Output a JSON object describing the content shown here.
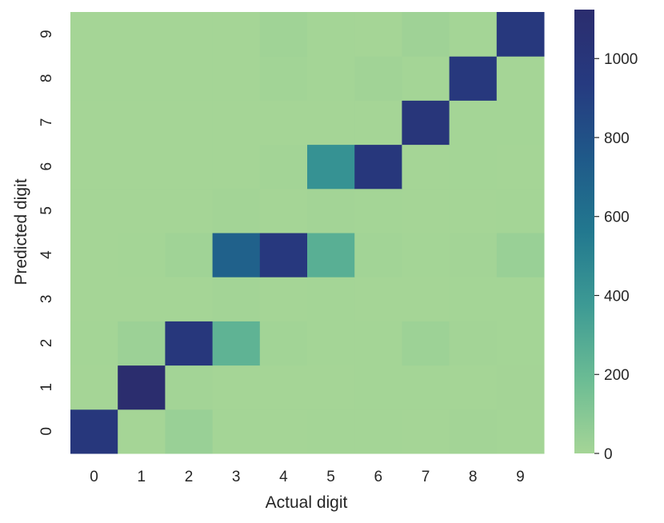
{
  "chart_data": {
    "type": "heatmap",
    "title": "",
    "xlabel": "Actual digit",
    "ylabel": "Predicted digit",
    "x_categories": [
      "0",
      "1",
      "2",
      "3",
      "4",
      "5",
      "6",
      "7",
      "8",
      "9"
    ],
    "y_categories": [
      "0",
      "1",
      "2",
      "3",
      "4",
      "5",
      "6",
      "7",
      "8",
      "9"
    ],
    "y_order": "bottom-to-top",
    "values_note": "rows indexed by predicted digit 0..9, columns by actual digit 0..9",
    "values": [
      [
        975,
        0,
        40,
        3,
        0,
        2,
        3,
        1,
        6,
        3
      ],
      [
        0,
        1124,
        5,
        0,
        1,
        0,
        3,
        3,
        0,
        4
      ],
      [
        3,
        30,
        975,
        235,
        10,
        2,
        2,
        25,
        5,
        3
      ],
      [
        0,
        0,
        1,
        6,
        0,
        2,
        0,
        1,
        2,
        3
      ],
      [
        0,
        2,
        15,
        700,
        960,
        260,
        10,
        3,
        6,
        40
      ],
      [
        1,
        1,
        0,
        5,
        0,
        6,
        2,
        0,
        1,
        2
      ],
      [
        1,
        1,
        1,
        1,
        5,
        420,
        980,
        1,
        3,
        1
      ],
      [
        0,
        0,
        1,
        1,
        0,
        1,
        0,
        1000,
        2,
        3
      ],
      [
        0,
        0,
        0,
        1,
        10,
        3,
        12,
        2,
        972,
        1
      ],
      [
        0,
        0,
        0,
        1,
        15,
        2,
        0,
        20,
        3,
        970
      ]
    ],
    "colorbar": {
      "min": 0,
      "max": 1124,
      "ticks": [
        0,
        200,
        400,
        600,
        800,
        1000
      ],
      "colormap": "crest",
      "color_stops": [
        "#a5d596",
        "#6bbc94",
        "#3d9a94",
        "#22788f",
        "#1f5989",
        "#263a80",
        "#2b2d6e"
      ]
    },
    "grid": false,
    "legend": "colorbar-right"
  }
}
